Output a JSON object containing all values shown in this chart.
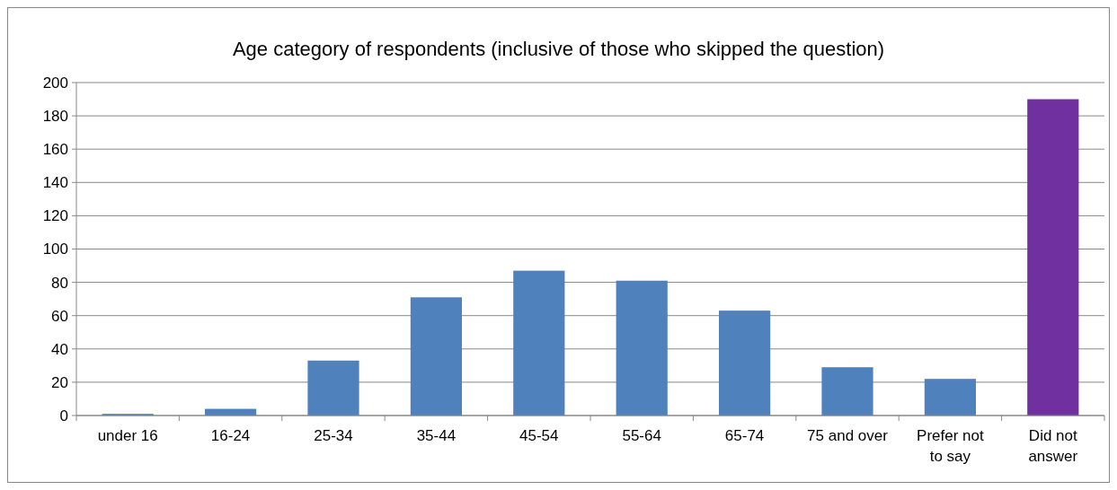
{
  "chart_data": {
    "type": "bar",
    "title": "Age category of respondents (inclusive of those who skipped the question)",
    "categories": [
      "under 16",
      "16-24",
      "25-34",
      "35-44",
      "45-54",
      "55-64",
      "65-74",
      "75 and over",
      "Prefer not to say",
      "Did not answer"
    ],
    "values": [
      1,
      4,
      33,
      71,
      87,
      81,
      63,
      29,
      22,
      190
    ],
    "colors": [
      "#4f81bd",
      "#4f81bd",
      "#4f81bd",
      "#4f81bd",
      "#4f81bd",
      "#4f81bd",
      "#4f81bd",
      "#4f81bd",
      "#4f81bd",
      "#7030a0"
    ],
    "ylim": [
      0,
      200
    ],
    "yticks": [
      0,
      20,
      40,
      60,
      80,
      100,
      120,
      140,
      160,
      180,
      200
    ],
    "grid": "y"
  }
}
